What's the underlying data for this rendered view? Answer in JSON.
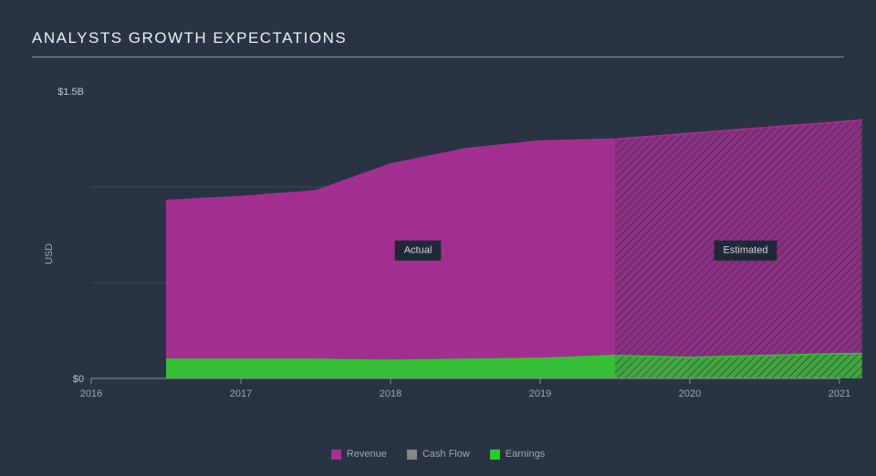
{
  "title": "ANALYSTS GROWTH EXPECTATIONS",
  "ylabel": "USD",
  "chart": {
    "type": "area",
    "background_color": "#283444",
    "grid_color": "#3d4756",
    "axis_color": "#8a929c",
    "tick_color": "#a0a7b0",
    "title_color": "#f0f0f0",
    "x": {
      "min": 2016,
      "max": 2021,
      "ticks": [
        2016,
        2017,
        2018,
        2019,
        2020,
        2021
      ],
      "tick_labels": [
        "2016",
        "2017",
        "2018",
        "2019",
        "2020",
        "2021"
      ]
    },
    "y": {
      "min": 0,
      "max": 1.5,
      "ticks_shown": [
        0,
        1.5
      ],
      "tick_labels": [
        "$0",
        "$1.5B"
      ],
      "minor_gridlines": [
        0.5,
        1.0
      ],
      "label_fontsize": 11
    },
    "split_x": 2019.5,
    "regions": {
      "actual_label": "Actual",
      "estimated_label": "Estimated",
      "label_bg": "#1f2836",
      "label_text_color": "#d5d8dc",
      "label_fontsize": 11
    },
    "series": [
      {
        "name": "Revenue",
        "color": "#a82f93",
        "points": [
          {
            "x": 2016.5,
            "y": 0.93
          },
          {
            "x": 2017.0,
            "y": 0.95
          },
          {
            "x": 2017.5,
            "y": 0.98
          },
          {
            "x": 2018.0,
            "y": 1.12
          },
          {
            "x": 2018.5,
            "y": 1.2
          },
          {
            "x": 2019.0,
            "y": 1.24
          },
          {
            "x": 2019.5,
            "y": 1.25
          },
          {
            "x": 2020.0,
            "y": 1.28
          },
          {
            "x": 2020.5,
            "y": 1.31
          },
          {
            "x": 2021.0,
            "y": 1.34
          },
          {
            "x": 2021.15,
            "y": 1.35
          }
        ]
      },
      {
        "name": "Cash Flow",
        "color": "#868686",
        "points": []
      },
      {
        "name": "Earnings",
        "color": "#30c730",
        "points": [
          {
            "x": 2016.5,
            "y": 0.1
          },
          {
            "x": 2017.0,
            "y": 0.1
          },
          {
            "x": 2017.5,
            "y": 0.1
          },
          {
            "x": 2018.0,
            "y": 0.095
          },
          {
            "x": 2018.5,
            "y": 0.1
          },
          {
            "x": 2019.0,
            "y": 0.105
          },
          {
            "x": 2019.5,
            "y": 0.12
          },
          {
            "x": 2020.0,
            "y": 0.11
          },
          {
            "x": 2020.5,
            "y": 0.12
          },
          {
            "x": 2021.0,
            "y": 0.13
          },
          {
            "x": 2021.15,
            "y": 0.13
          }
        ]
      }
    ],
    "hatch": {
      "color": "#1e2430",
      "spacing": 6,
      "stroke_width": 1
    },
    "title_fontsize": 17,
    "tick_fontsize": 11,
    "line_width": 1.5,
    "fill_opacity_actual": 0.95,
    "fill_opacity_estimated": 0.78
  },
  "legend": {
    "items": [
      {
        "label": "Revenue",
        "color": "#a82f93"
      },
      {
        "label": "Cash Flow",
        "color": "#868686"
      },
      {
        "label": "Earnings",
        "color": "#30c730"
      }
    ]
  }
}
